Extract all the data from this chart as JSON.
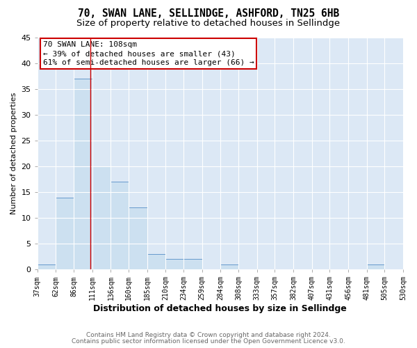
{
  "title": "70, SWAN LANE, SELLINDGE, ASHFORD, TN25 6HB",
  "subtitle": "Size of property relative to detached houses in Sellindge",
  "xlabel": "Distribution of detached houses by size in Sellindge",
  "ylabel": "Number of detached properties",
  "bar_edges": [
    37,
    62,
    86,
    111,
    136,
    160,
    185,
    210,
    234,
    259,
    284,
    308,
    333,
    357,
    382,
    407,
    431,
    456,
    481,
    505,
    530
  ],
  "bar_heights": [
    1,
    14,
    37,
    20,
    17,
    12,
    3,
    2,
    2,
    0,
    1,
    0,
    0,
    0,
    0,
    0,
    0,
    0,
    1,
    0
  ],
  "bar_color": "#cce0f0",
  "bar_edge_color": "#6699cc",
  "red_line_x": 108,
  "ylim": [
    0,
    45
  ],
  "yticks": [
    0,
    5,
    10,
    15,
    20,
    25,
    30,
    35,
    40,
    45
  ],
  "annotation_line1": "70 SWAN LANE: 108sqm",
  "annotation_line2": "← 39% of detached houses are smaller (43)",
  "annotation_line3": "61% of semi-detached houses are larger (66) →",
  "annotation_box_color": "#ffffff",
  "annotation_box_edge_color": "#cc0000",
  "plot_bg_color": "#dce8f5",
  "grid_color": "#ffffff",
  "fig_bg_color": "#ffffff",
  "footer_line1": "Contains HM Land Registry data © Crown copyright and database right 2024.",
  "footer_line2": "Contains public sector information licensed under the Open Government Licence v3.0.",
  "title_fontsize": 10.5,
  "subtitle_fontsize": 9.5,
  "xlabel_fontsize": 9,
  "ylabel_fontsize": 8,
  "tick_fontsize": 7,
  "annot_fontsize": 8,
  "footer_fontsize": 6.5,
  "footer_color": "#666666"
}
